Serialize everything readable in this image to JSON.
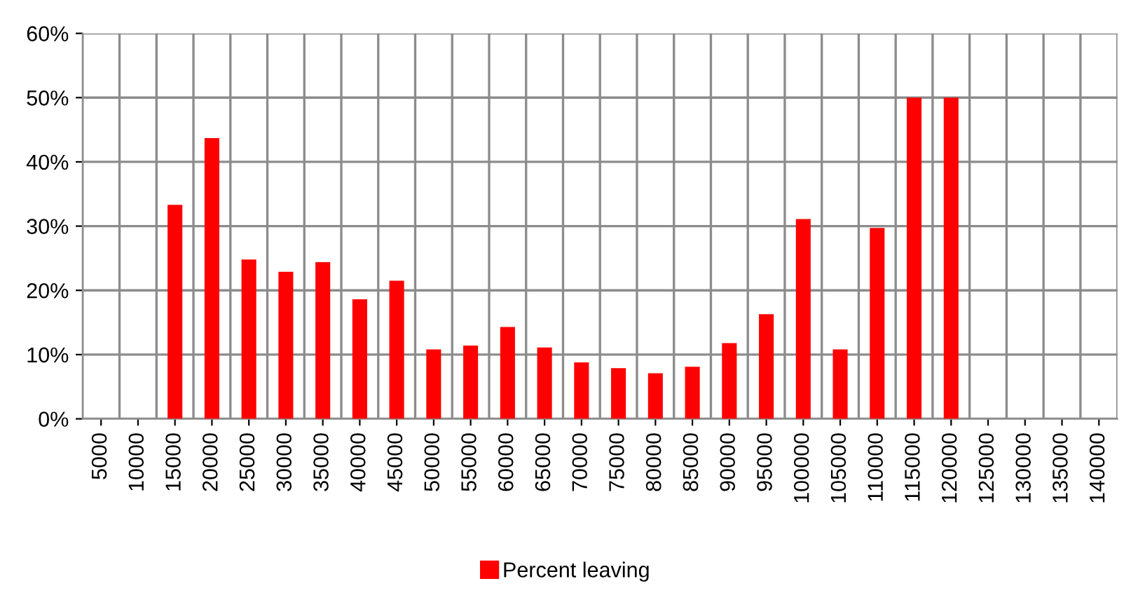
{
  "chart_data": {
    "type": "bar",
    "categories": [
      "5000",
      "10000",
      "15000",
      "20000",
      "25000",
      "30000",
      "35000",
      "40000",
      "45000",
      "50000",
      "55000",
      "60000",
      "65000",
      "70000",
      "75000",
      "80000",
      "85000",
      "90000",
      "95000",
      "100000",
      "105000",
      "110000",
      "115000",
      "120000",
      "125000",
      "130000",
      "135000",
      "140000"
    ],
    "series": [
      {
        "name": "Percent leaving",
        "color": "#ff0000",
        "values": [
          null,
          null,
          33.3,
          43.7,
          24.8,
          22.9,
          24.4,
          18.6,
          21.5,
          10.8,
          11.4,
          14.3,
          11.1,
          8.8,
          7.9,
          7.1,
          8.1,
          11.8,
          16.3,
          31.1,
          10.8,
          29.7,
          50,
          50,
          null,
          null,
          null,
          null
        ]
      }
    ],
    "ylim": [
      0,
      60
    ],
    "yticks": [
      {
        "value": 0,
        "label": "0%"
      },
      {
        "value": 10,
        "label": "10%"
      },
      {
        "value": 20,
        "label": "20%"
      },
      {
        "value": 30,
        "label": "30%"
      },
      {
        "value": 40,
        "label": "40%"
      },
      {
        "value": 50,
        "label": "50%"
      },
      {
        "value": 60,
        "label": "60%"
      }
    ],
    "grid": true,
    "legend": "bottom"
  }
}
